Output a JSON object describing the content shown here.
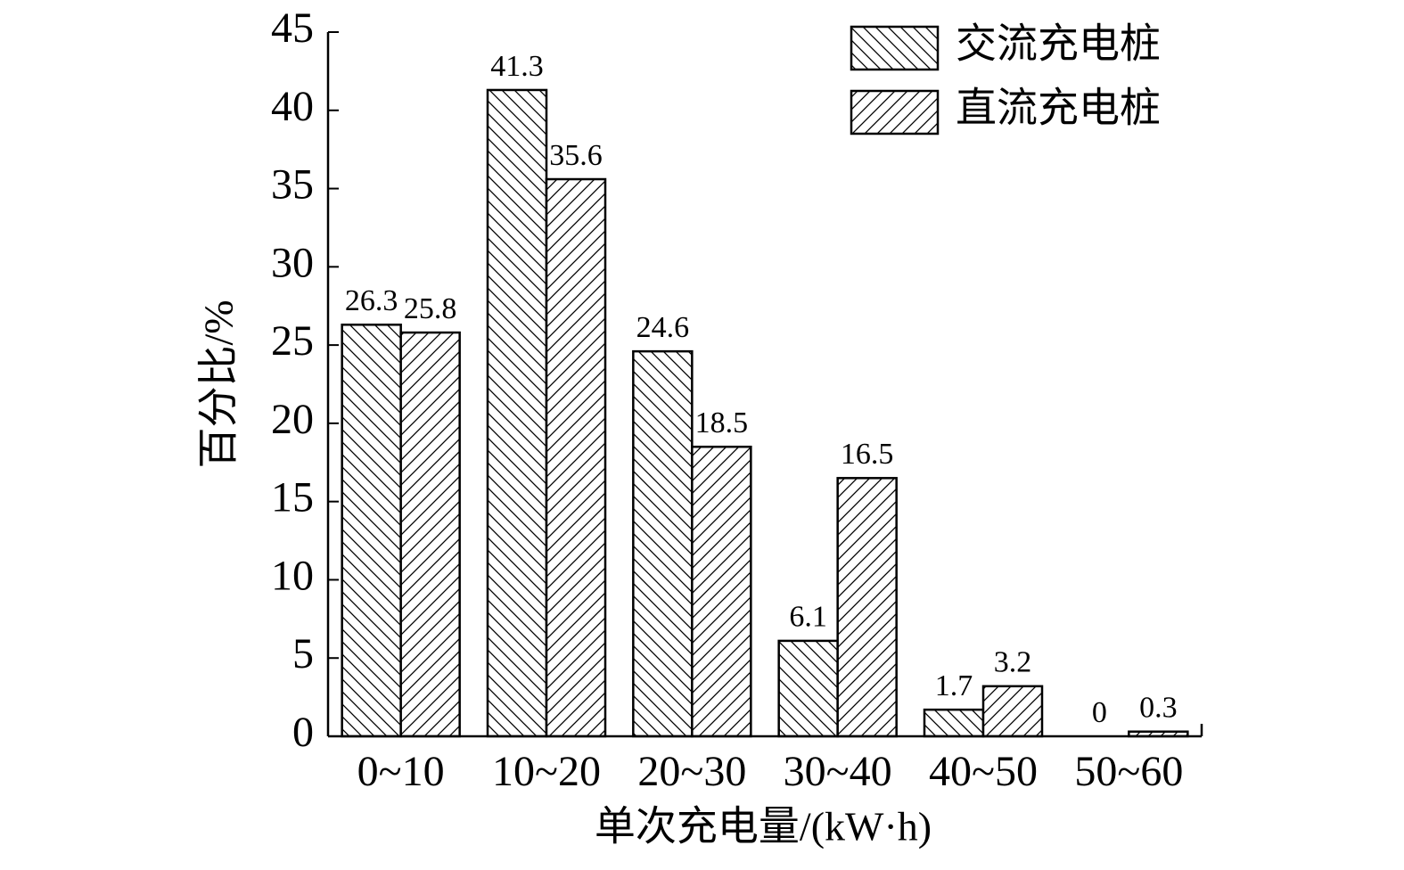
{
  "chart_data": {
    "type": "bar",
    "xlabel": "单次充电量/(kW·h)",
    "ylabel": "百分比/%",
    "categories": [
      "0~10",
      "10~20",
      "20~30",
      "30~40",
      "40~50",
      "50~60"
    ],
    "series": [
      {
        "name": "交流充电桩",
        "color": "#000000",
        "hatch": "down",
        "values": [
          26.3,
          41.3,
          24.6,
          6.1,
          1.7,
          0
        ]
      },
      {
        "name": "直流充电桩",
        "color": "#000000",
        "hatch": "up",
        "values": [
          25.8,
          35.6,
          18.5,
          16.5,
          3.2,
          0.3
        ]
      }
    ],
    "ylim": [
      0,
      45
    ],
    "yticks": [
      0,
      5,
      10,
      15,
      20,
      25,
      30,
      35,
      40,
      45
    ],
    "legend": "upper right",
    "grid": false
  }
}
